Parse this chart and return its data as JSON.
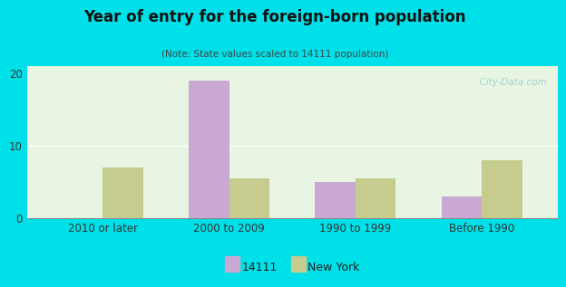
{
  "title": "Year of entry for the foreign-born population",
  "subtitle": "(Note: State values scaled to 14111 population)",
  "categories": [
    "2010 or later",
    "2000 to 2009",
    "1990 to 1999",
    "Before 1990"
  ],
  "values_14111": [
    0,
    19.0,
    5.0,
    3.0
  ],
  "values_ny": [
    7.0,
    5.5,
    5.5,
    8.0
  ],
  "color_14111": "#c9a8d4",
  "color_ny": "#c5cc8e",
  "background_outer": "#00e0e8",
  "background_inner_top": "#e8f5e2",
  "background_inner_bottom": "#f5fff5",
  "ylim": [
    0,
    21
  ],
  "yticks": [
    0,
    10,
    20
  ],
  "bar_width": 0.32,
  "legend_label_14111": "14111",
  "legend_label_ny": "New York",
  "watermark": "  City-Data.com"
}
